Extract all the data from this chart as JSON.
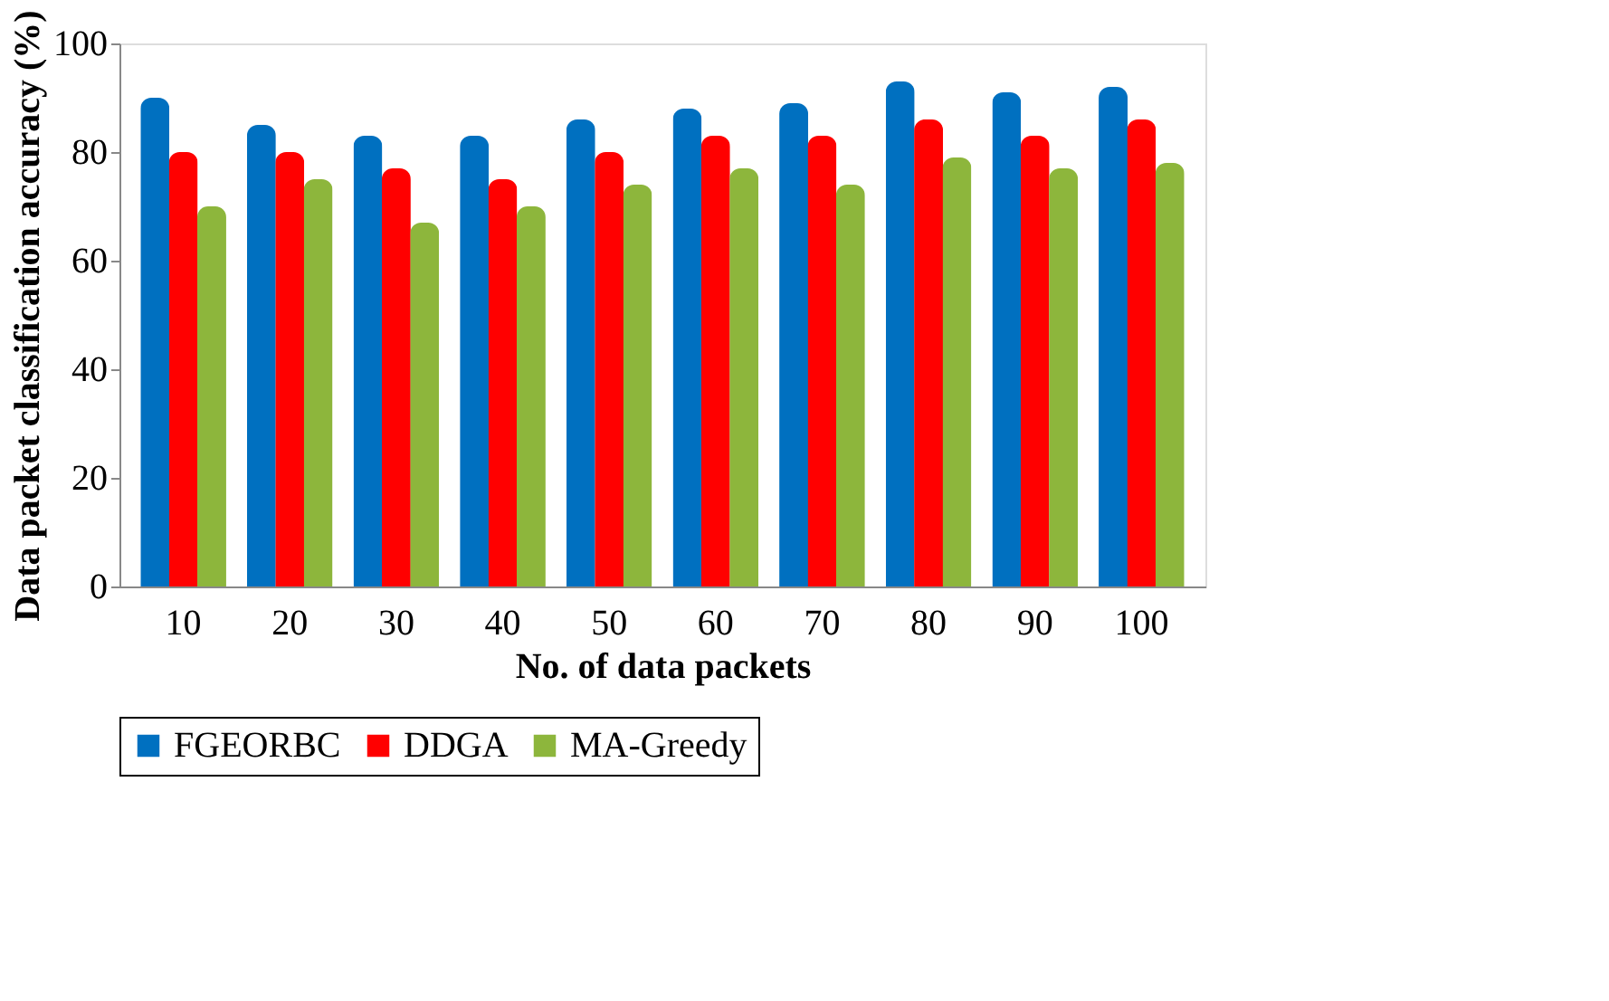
{
  "chart_data": {
    "type": "bar",
    "xlabel": "No. of data packets",
    "ylabel": "Data packet classification accuracy (%)",
    "categories": [
      "10",
      "20",
      "30",
      "40",
      "50",
      "60",
      "70",
      "80",
      "90",
      "100"
    ],
    "series": [
      {
        "name": "FGEORBC",
        "color": "#0070c0",
        "values": [
          90,
          85,
          83,
          83,
          86,
          88,
          89,
          93,
          91,
          92
        ]
      },
      {
        "name": "DDGA",
        "color": "#ff0000",
        "values": [
          80,
          80,
          77,
          75,
          80,
          83,
          83,
          86,
          83,
          86
        ]
      },
      {
        "name": "MA-Greedy",
        "color": "#8db63c",
        "values": [
          70,
          75,
          67,
          70,
          74,
          77,
          74,
          79,
          77,
          78
        ]
      }
    ],
    "ylim": [
      0,
      100
    ],
    "yticks": [
      0,
      20,
      40,
      60,
      80,
      100
    ],
    "grid": false,
    "legend": "bottom"
  }
}
